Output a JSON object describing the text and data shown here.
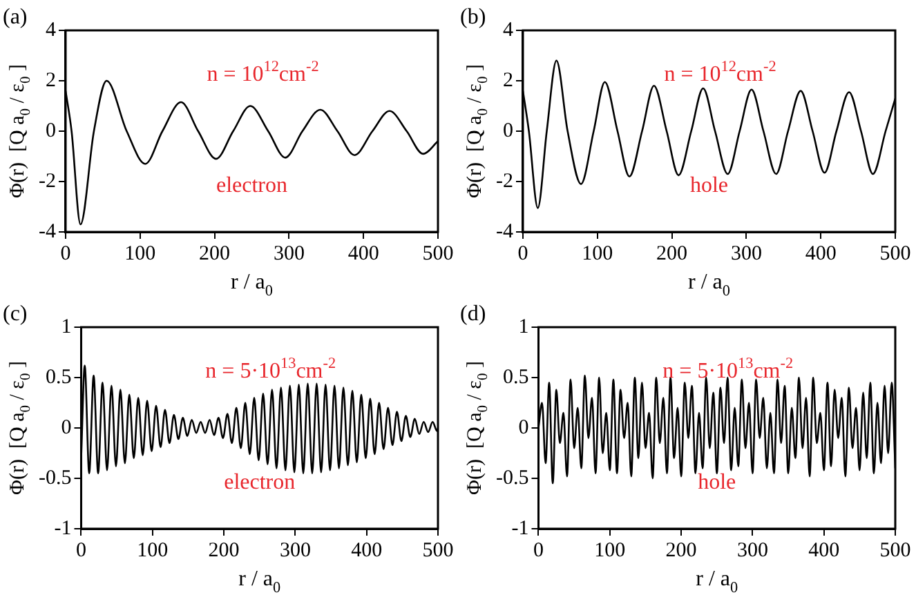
{
  "chart_data": [
    {
      "type": "line",
      "title": "(a)",
      "xlabel": "r / a$_{0}$",
      "ylabel": "Φ(r)  [Q a$_{0}$ / ε$_{0}$ ]",
      "annotations": [
        "n = 10$^{12}$cm$^{-2}$",
        "electron"
      ],
      "xlim": [
        0,
        500
      ],
      "xticks": [
        0,
        100,
        200,
        300,
        400,
        500
      ],
      "ylim": [
        -4,
        4
      ],
      "yticks": [
        -4,
        -2,
        0,
        2,
        4
      ],
      "grid": false,
      "legend": false,
      "series": [
        {
          "color": "#000000",
          "x": [
            0,
            8,
            20,
            38,
            55,
            82,
            107,
            130,
            155,
            178,
            202,
            225,
            248,
            272,
            295,
            318,
            342,
            365,
            388,
            412,
            435,
            458,
            480,
            500
          ],
          "values": [
            1.6,
            0,
            -3.7,
            0,
            2.0,
            0,
            -1.3,
            0,
            1.15,
            0,
            -1.1,
            0,
            1.0,
            0,
            -1.05,
            0,
            0.85,
            0,
            -0.95,
            0,
            0.8,
            0,
            -0.9,
            -0.4
          ]
        }
      ]
    },
    {
      "type": "line",
      "title": "(b)",
      "xlabel": "r / a$_{0}$",
      "ylabel": "Φ(r)  [Q a$_{0}$ / ε$_{0}$ ]",
      "annotations": [
        "n = 10$^{12}$cm$^{-2}$",
        "hole"
      ],
      "xlim": [
        0,
        500
      ],
      "xticks": [
        0,
        100,
        200,
        300,
        400,
        500
      ],
      "ylim": [
        -4,
        4
      ],
      "yticks": [
        -4,
        -2,
        0,
        2,
        4
      ],
      "grid": false,
      "legend": false,
      "series": [
        {
          "color": "#000000",
          "x": [
            0,
            8,
            20,
            32,
            45,
            60,
            78,
            95,
            110,
            127,
            143,
            160,
            176,
            193,
            209,
            226,
            242,
            258,
            275,
            291,
            307,
            323,
            340,
            356,
            373,
            389,
            405,
            421,
            438,
            454,
            470,
            487,
            500
          ],
          "values": [
            1.6,
            0,
            -3.05,
            0,
            2.8,
            0,
            -2.1,
            0,
            1.95,
            0,
            -1.8,
            0,
            1.8,
            0,
            -1.75,
            0,
            1.7,
            0,
            -1.7,
            0,
            1.65,
            0,
            -1.7,
            0,
            1.6,
            0,
            -1.65,
            0,
            1.55,
            0,
            -1.7,
            0,
            1.3
          ]
        }
      ]
    },
    {
      "type": "line",
      "title": "(c)",
      "xlabel": "r / a$_{0}$",
      "ylabel": "Φ(r)  [Q a$_{0}$ / ε$_{0}$ ]",
      "annotations": [
        "n = 5·10$^{13}$cm$^{-2}$",
        "electron"
      ],
      "xlim": [
        0,
        500
      ],
      "xticks": [
        0,
        100,
        200,
        300,
        400,
        500
      ],
      "ylim": [
        -1,
        1
      ],
      "yticks": [
        -1,
        -0.5,
        0,
        0.5,
        1
      ],
      "grid": false,
      "legend": false,
      "series": [
        {
          "color": "#000000",
          "x": [
            0,
            5,
            11.25,
            17.5,
            23.75,
            30,
            36.25,
            42.5,
            48.75,
            55,
            61.25,
            67.5,
            73.75,
            80,
            86.25,
            92.5,
            98.75,
            105,
            111.25,
            117.5,
            123.75,
            130,
            136.25,
            142.5,
            148.75,
            155,
            161.25,
            167.5,
            173.75,
            180,
            186.25,
            192.5,
            198.75,
            205,
            211.25,
            217.5,
            223.75,
            230,
            236.25,
            242.5,
            248.75,
            255,
            261.25,
            267.5,
            273.75,
            280,
            286.25,
            292.5,
            298.75,
            305,
            311.25,
            317.5,
            323.75,
            330,
            336.25,
            342.5,
            348.75,
            355,
            361.25,
            367.5,
            373.75,
            380,
            386.25,
            392.5,
            398.75,
            405,
            411.25,
            417.5,
            423.75,
            430,
            436.25,
            442.5,
            448.75,
            455,
            461.25,
            467.5,
            473.75,
            480,
            486.25,
            492.5,
            498.75,
            500
          ],
          "values": [
            -0.3,
            0.62,
            -0.45,
            0.52,
            -0.45,
            0.45,
            -0.42,
            0.42,
            -0.38,
            0.38,
            -0.35,
            0.33,
            -0.3,
            0.3,
            -0.27,
            0.27,
            -0.23,
            0.22,
            -0.19,
            0.18,
            -0.15,
            0.13,
            -0.11,
            0.1,
            -0.08,
            0.08,
            -0.05,
            0.06,
            -0.05,
            0.08,
            -0.07,
            0.1,
            -0.1,
            0.14,
            -0.15,
            0.2,
            -0.2,
            0.25,
            -0.26,
            0.3,
            -0.32,
            0.34,
            -0.36,
            0.38,
            -0.4,
            0.4,
            -0.42,
            0.42,
            -0.44,
            0.43,
            -0.45,
            0.44,
            -0.45,
            0.44,
            -0.44,
            0.43,
            -0.42,
            0.42,
            -0.4,
            0.4,
            -0.37,
            0.37,
            -0.34,
            0.33,
            -0.3,
            0.29,
            -0.26,
            0.25,
            -0.21,
            0.2,
            -0.17,
            0.16,
            -0.13,
            0.12,
            -0.09,
            0.09,
            -0.06,
            0.06,
            -0.04,
            0.06,
            -0.03,
            0
          ]
        }
      ]
    },
    {
      "type": "line",
      "title": "(d)",
      "xlabel": "r / a$_{0}$",
      "ylabel": "Φ(r)  [Q a$_{0}$ / ε$_{0}$ ]",
      "annotations": [
        "n = 5·10$^{13}$cm$^{-2}$",
        "hole"
      ],
      "xlim": [
        0,
        500
      ],
      "xticks": [
        0,
        100,
        200,
        300,
        400,
        500
      ],
      "ylim": [
        -1,
        1
      ],
      "yticks": [
        -1,
        -0.5,
        0,
        0.5,
        1
      ],
      "grid": false,
      "legend": false,
      "series": [
        {
          "color": "#000000",
          "x": [
            0,
            5,
            10,
            15,
            20,
            25,
            30,
            35,
            40,
            45,
            50,
            55,
            60,
            65,
            70,
            75,
            80,
            85,
            90,
            95,
            100,
            105,
            110,
            115,
            120,
            125,
            130,
            135,
            140,
            145,
            150,
            155,
            160,
            165,
            170,
            175,
            180,
            185,
            190,
            195,
            200,
            205,
            210,
            215,
            220,
            225,
            230,
            235,
            240,
            245,
            250,
            255,
            260,
            265,
            270,
            275,
            280,
            285,
            290,
            295,
            300,
            305,
            310,
            315,
            320,
            325,
            330,
            335,
            340,
            345,
            350,
            355,
            360,
            365,
            370,
            375,
            380,
            385,
            390,
            395,
            400,
            405,
            410,
            415,
            420,
            425,
            430,
            435,
            440,
            445,
            450,
            455,
            460,
            465,
            470,
            475,
            480,
            485,
            490,
            495,
            500
          ],
          "values": [
            0,
            0.25,
            -0.35,
            0.45,
            -0.55,
            0.38,
            -0.15,
            0.15,
            -0.48,
            0.48,
            -0.2,
            0.2,
            -0.4,
            0.52,
            -0.1,
            0.3,
            -0.45,
            0.5,
            -0.25,
            0.15,
            -0.42,
            0.48,
            -0.45,
            0.38,
            -0.1,
            0.25,
            -0.48,
            0.5,
            -0.3,
            0.45,
            -0.2,
            0.15,
            -0.5,
            0.5,
            -0.15,
            0.3,
            -0.45,
            0.5,
            -0.3,
            0.2,
            -0.48,
            0.45,
            -0.1,
            0.42,
            -0.45,
            0.15,
            -0.4,
            0.5,
            -0.2,
            0.35,
            -0.45,
            0.4,
            -0.15,
            0.5,
            -0.42,
            0.2,
            -0.38,
            0.48,
            -0.2,
            0.25,
            -0.45,
            0.48,
            -0.1,
            0.3,
            -0.4,
            0.15,
            -0.45,
            0.48,
            -0.15,
            0.42,
            -0.45,
            0.2,
            -0.3,
            0.5,
            -0.2,
            0.3,
            -0.48,
            0.5,
            -0.15,
            0.15,
            -0.42,
            0.45,
            -0.38,
            0.38,
            -0.1,
            0.3,
            -0.48,
            0.4,
            -0.2,
            0.2,
            -0.42,
            0.35,
            -0.3,
            0.45,
            -0.45,
            0.25,
            -0.35,
            0.42,
            -0.25,
            0.45,
            -0.4
          ]
        }
      ]
    }
  ]
}
